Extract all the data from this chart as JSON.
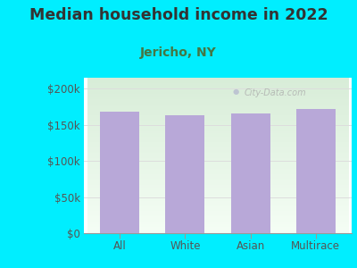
{
  "title": "Median household income in 2022",
  "subtitle": "Jericho, NY",
  "categories": [
    "All",
    "White",
    "Asian",
    "Multirace"
  ],
  "values": [
    168000,
    163000,
    165000,
    172000
  ],
  "bar_color": "#b8a8d8",
  "background_outer": "#00eeff",
  "grad_top": "#d8edd8",
  "grad_bottom": "#f5fdf5",
  "title_fontsize": 12.5,
  "subtitle_fontsize": 10,
  "tick_label_fontsize": 8.5,
  "ytick_labels": [
    "$0",
    "$50k",
    "$100k",
    "$150k",
    "$200k"
  ],
  "ytick_values": [
    0,
    50000,
    100000,
    150000,
    200000
  ],
  "ylim": [
    0,
    215000
  ],
  "title_color": "#333333",
  "subtitle_color": "#447744",
  "tick_color": "#555555",
  "grid_color": "#dddddd",
  "watermark": "City-Data.com",
  "watermark_color": "#aaaaaa"
}
